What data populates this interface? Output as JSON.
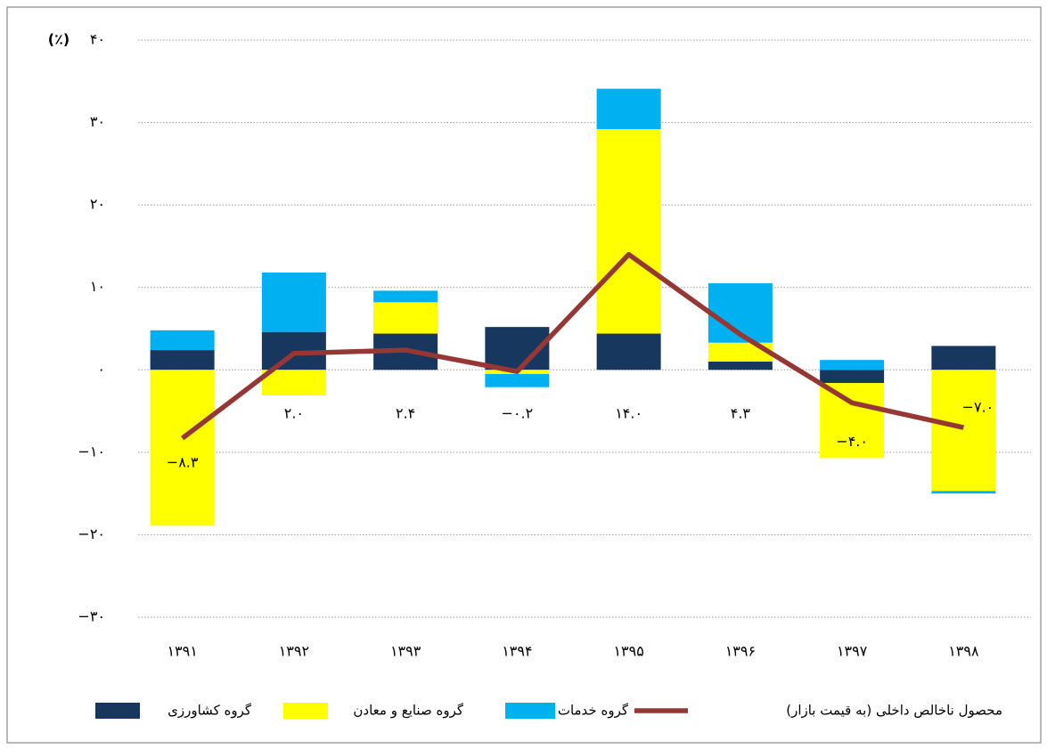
{
  "chart_data": {
    "type": "bar",
    "stacked": true,
    "y_unit": "(٪)",
    "categories": [
      "۱۳۹۱",
      "۱۳۹۲",
      "۱۳۹۳",
      "۱۳۹۴",
      "۱۳۹۵",
      "۱۳۹۶",
      "۱۳۹۷",
      "۱۳۹۸"
    ],
    "ylim": [
      -30,
      40
    ],
    "yticks": [
      {
        "value": -30,
        "label": "−۳۰"
      },
      {
        "value": -20,
        "label": "−۲۰"
      },
      {
        "value": -10,
        "label": "−۱۰"
      },
      {
        "value": 0,
        "label": "۰"
      },
      {
        "value": 10,
        "label": "۱۰"
      },
      {
        "value": 20,
        "label": "۲۰"
      },
      {
        "value": 30,
        "label": "۳۰"
      },
      {
        "value": 40,
        "label": "۴۰"
      }
    ],
    "grid": true,
    "legend": "bottom",
    "series": [
      {
        "name": "گروه کشاورزی",
        "type": "bar",
        "color": "#17375e",
        "values": [
          2.4,
          4.6,
          4.4,
          5.2,
          4.4,
          1.0,
          -1.6,
          2.9
        ]
      },
      {
        "name": "گروه صنایع و معادن",
        "type": "bar",
        "color": "#ffff00",
        "values": [
          -18.9,
          -3.1,
          3.8,
          -0.5,
          24.8,
          2.3,
          -9.1,
          -14.7
        ]
      },
      {
        "name": "گروه خدمات",
        "type": "bar",
        "color": "#00b0f0",
        "values": [
          2.4,
          7.2,
          1.4,
          -1.6,
          4.9,
          7.2,
          1.2,
          -0.3
        ]
      },
      {
        "name": "محصول ناخالص داخلی (به قیمت بازار)",
        "type": "line",
        "color": "#953735",
        "values": [
          -8.3,
          2.0,
          2.4,
          -0.2,
          14.0,
          4.3,
          -4.0,
          -7.0
        ],
        "value_labels": [
          "−۸.۳",
          "۲.۰",
          "۲.۴",
          "−۰.۲",
          "۱۴.۰",
          "۴.۳",
          "−۴.۰",
          "−۷.۰"
        ]
      }
    ]
  }
}
